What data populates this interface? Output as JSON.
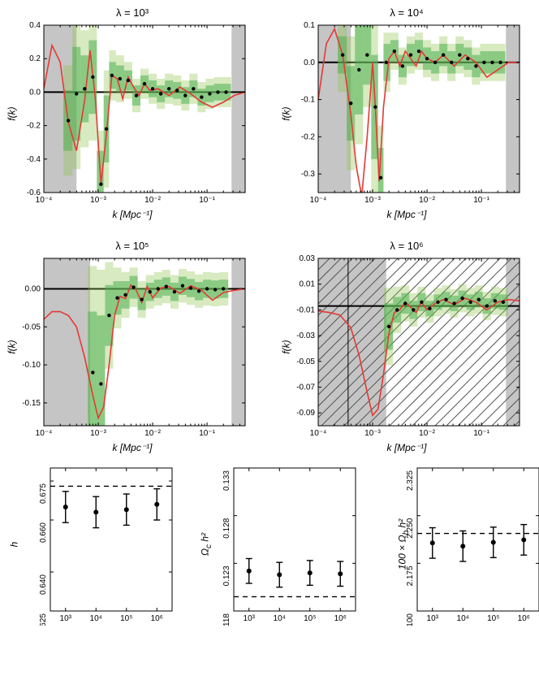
{
  "shared": {
    "xlabel_fk": "k [Mpc⁻¹]",
    "ylabel_fk": "f(k)",
    "xticks_log": [
      "10⁻⁴",
      "10⁻³",
      "10⁻²",
      "10⁻¹"
    ],
    "bottom_xticks": [
      "10³",
      "10⁴",
      "10⁵",
      "10⁶"
    ],
    "colors": {
      "red": "#e53935",
      "green_inner": "#4caf50",
      "green_outer": "#8bc34a",
      "gray": "#9e9e9e",
      "black": "#000000",
      "background": "#ffffff"
    },
    "font": {
      "family": "Helvetica Neue",
      "title_size": 13,
      "label_size": 12,
      "tick_size": 10
    }
  },
  "panels_fk": [
    {
      "title": "λ = 10³",
      "ylim": [
        -0.6,
        0.4
      ],
      "yticks": [
        -0.6,
        -0.4,
        -0.2,
        0.0,
        0.2,
        0.4
      ],
      "gray_ranges_x": [
        [
          -4,
          -3.4
        ],
        [
          -0.55,
          -0.3
        ]
      ],
      "red_curve": [
        [
          -4,
          0.02
        ],
        [
          -3.85,
          0.28
        ],
        [
          -3.7,
          0.18
        ],
        [
          -3.55,
          -0.18
        ],
        [
          -3.4,
          -0.35
        ],
        [
          -3.25,
          -0.05
        ],
        [
          -3.15,
          0.25
        ],
        [
          -3.05,
          -0.05
        ],
        [
          -2.95,
          -0.55
        ],
        [
          -2.85,
          -0.25
        ],
        [
          -2.75,
          0.1
        ],
        [
          -2.65,
          0.08
        ],
        [
          -2.55,
          -0.04
        ],
        [
          -2.45,
          0.09
        ],
        [
          -2.35,
          0.03
        ],
        [
          -2.25,
          -0.02
        ],
        [
          -2.15,
          0.05
        ],
        [
          -2.05,
          0.01
        ],
        [
          -1.9,
          0.02
        ],
        [
          -1.7,
          -0.02
        ],
        [
          -1.5,
          0.03
        ],
        [
          -1.3,
          -0.01
        ],
        [
          -1.1,
          -0.06
        ],
        [
          -0.9,
          -0.09
        ],
        [
          -0.7,
          -0.06
        ],
        [
          -0.5,
          -0.02
        ],
        [
          -0.3,
          0.0
        ]
      ],
      "points": [
        {
          "x": -3.55,
          "y": -0.17,
          "ei": 0.18,
          "eo": 0.33
        },
        {
          "x": -3.4,
          "y": -0.01,
          "ei": 0.28,
          "eo": 0.45
        },
        {
          "x": -3.25,
          "y": 0.02,
          "ei": 0.2,
          "eo": 0.35
        },
        {
          "x": -3.1,
          "y": 0.09,
          "ei": 0.22,
          "eo": 0.38
        },
        {
          "x": -2.95,
          "y": -0.55,
          "ei": 0.2,
          "eo": 0.32
        },
        {
          "x": -2.85,
          "y": -0.22,
          "ei": 0.2,
          "eo": 0.35
        },
        {
          "x": -2.75,
          "y": 0.1,
          "ei": 0.08,
          "eo": 0.15
        },
        {
          "x": -2.6,
          "y": 0.08,
          "ei": 0.08,
          "eo": 0.14
        },
        {
          "x": -2.45,
          "y": 0.07,
          "ei": 0.06,
          "eo": 0.11
        },
        {
          "x": -2.3,
          "y": -0.02,
          "ei": 0.06,
          "eo": 0.1
        },
        {
          "x": -2.15,
          "y": 0.05,
          "ei": 0.05,
          "eo": 0.09
        },
        {
          "x": -2.0,
          "y": 0.02,
          "ei": 0.05,
          "eo": 0.09
        },
        {
          "x": -1.85,
          "y": -0.01,
          "ei": 0.05,
          "eo": 0.09
        },
        {
          "x": -1.7,
          "y": 0.02,
          "ei": 0.05,
          "eo": 0.09
        },
        {
          "x": -1.55,
          "y": 0.01,
          "ei": 0.05,
          "eo": 0.09
        },
        {
          "x": -1.4,
          "y": -0.02,
          "ei": 0.05,
          "eo": 0.09
        },
        {
          "x": -1.25,
          "y": 0.02,
          "ei": 0.05,
          "eo": 0.09
        },
        {
          "x": -1.1,
          "y": -0.03,
          "ei": 0.05,
          "eo": 0.09
        },
        {
          "x": -0.95,
          "y": -0.01,
          "ei": 0.05,
          "eo": 0.09
        },
        {
          "x": -0.8,
          "y": 0.0,
          "ei": 0.05,
          "eo": 0.09
        },
        {
          "x": -0.65,
          "y": 0.0,
          "ei": 0.05,
          "eo": 0.09
        }
      ]
    },
    {
      "title": "λ = 10⁴",
      "ylim": [
        -0.35,
        0.1
      ],
      "yticks": [
        -0.3,
        -0.2,
        -0.1,
        0.0,
        0.1
      ],
      "gray_ranges_x": [
        [
          -4,
          -3.4
        ],
        [
          -0.55,
          -0.3
        ]
      ],
      "red_curve": [
        [
          -4,
          -0.1
        ],
        [
          -3.85,
          0.05
        ],
        [
          -3.7,
          0.09
        ],
        [
          -3.55,
          0.02
        ],
        [
          -3.4,
          -0.14
        ],
        [
          -3.3,
          -0.28
        ],
        [
          -3.2,
          -0.36
        ],
        [
          -3.1,
          -0.2
        ],
        [
          -3.0,
          0.0
        ],
        [
          -2.95,
          -0.12
        ],
        [
          -2.88,
          -0.32
        ],
        [
          -2.8,
          -0.12
        ],
        [
          -2.7,
          0.01
        ],
        [
          -2.6,
          0.03
        ],
        [
          -2.5,
          -0.01
        ],
        [
          -2.4,
          0.03
        ],
        [
          -2.3,
          0.01
        ],
        [
          -2.2,
          -0.01
        ],
        [
          -2.1,
          0.03
        ],
        [
          -2.0,
          0.01
        ],
        [
          -1.85,
          0.0
        ],
        [
          -1.7,
          0.02
        ],
        [
          -1.5,
          -0.01
        ],
        [
          -1.3,
          0.02
        ],
        [
          -1.1,
          0.0
        ],
        [
          -0.9,
          -0.04
        ],
        [
          -0.7,
          -0.02
        ],
        [
          -0.5,
          0.0
        ],
        [
          -0.3,
          0.0
        ]
      ],
      "points": [
        {
          "x": -3.55,
          "y": 0.02,
          "ei": 0.05,
          "eo": 0.1
        },
        {
          "x": -3.4,
          "y": -0.11,
          "ei": 0.1,
          "eo": 0.18
        },
        {
          "x": -3.25,
          "y": -0.02,
          "ei": 0.12,
          "eo": 0.2
        },
        {
          "x": -3.1,
          "y": 0.02,
          "ei": 0.08,
          "eo": 0.14
        },
        {
          "x": -2.95,
          "y": -0.12,
          "ei": 0.14,
          "eo": 0.24
        },
        {
          "x": -2.85,
          "y": -0.31,
          "ei": 0.08,
          "eo": 0.14
        },
        {
          "x": -2.75,
          "y": 0.0,
          "ei": 0.05,
          "eo": 0.08
        },
        {
          "x": -2.6,
          "y": 0.03,
          "ei": 0.03,
          "eo": 0.05
        },
        {
          "x": -2.45,
          "y": -0.01,
          "ei": 0.03,
          "eo": 0.05
        },
        {
          "x": -2.3,
          "y": 0.02,
          "ei": 0.03,
          "eo": 0.05
        },
        {
          "x": -2.15,
          "y": 0.03,
          "ei": 0.03,
          "eo": 0.05
        },
        {
          "x": -2.0,
          "y": 0.01,
          "ei": 0.03,
          "eo": 0.05
        },
        {
          "x": -1.85,
          "y": 0.0,
          "ei": 0.03,
          "eo": 0.05
        },
        {
          "x": -1.7,
          "y": 0.02,
          "ei": 0.03,
          "eo": 0.05
        },
        {
          "x": -1.55,
          "y": 0.0,
          "ei": 0.03,
          "eo": 0.05
        },
        {
          "x": -1.4,
          "y": 0.02,
          "ei": 0.03,
          "eo": 0.05
        },
        {
          "x": -1.25,
          "y": 0.01,
          "ei": 0.03,
          "eo": 0.05
        },
        {
          "x": -1.1,
          "y": -0.01,
          "ei": 0.03,
          "eo": 0.05
        },
        {
          "x": -0.95,
          "y": 0.0,
          "ei": 0.03,
          "eo": 0.05
        },
        {
          "x": -0.8,
          "y": 0.0,
          "ei": 0.03,
          "eo": 0.05
        },
        {
          "x": -0.65,
          "y": 0.0,
          "ei": 0.03,
          "eo": 0.05
        }
      ]
    },
    {
      "title": "λ = 10⁵",
      "ylim": [
        -0.18,
        0.04
      ],
      "yticks": [
        -0.15,
        -0.1,
        -0.05,
        0.0
      ],
      "gray_ranges_x": [
        [
          -4,
          -3.15
        ],
        [
          -0.55,
          -0.3
        ]
      ],
      "red_curve": [
        [
          -4,
          -0.04
        ],
        [
          -3.85,
          -0.03
        ],
        [
          -3.7,
          -0.03
        ],
        [
          -3.55,
          -0.035
        ],
        [
          -3.4,
          -0.05
        ],
        [
          -3.25,
          -0.09
        ],
        [
          -3.1,
          -0.14
        ],
        [
          -3.0,
          -0.17
        ],
        [
          -2.9,
          -0.155
        ],
        [
          -2.8,
          -0.1
        ],
        [
          -2.7,
          -0.035
        ],
        [
          -2.6,
          -0.01
        ],
        [
          -2.5,
          -0.013
        ],
        [
          -2.4,
          0.005
        ],
        [
          -2.3,
          -0.002
        ],
        [
          -2.2,
          -0.018
        ],
        [
          -2.1,
          0.003
        ],
        [
          -2.0,
          -0.012
        ],
        [
          -1.85,
          0.001
        ],
        [
          -1.7,
          0.003
        ],
        [
          -1.5,
          -0.006
        ],
        [
          -1.3,
          0.004
        ],
        [
          -1.1,
          -0.002
        ],
        [
          -0.9,
          -0.015
        ],
        [
          -0.7,
          -0.005
        ],
        [
          -0.5,
          -0.002
        ],
        [
          -0.3,
          0.0
        ]
      ],
      "points": [
        {
          "x": -3.1,
          "y": -0.11,
          "ei": 0.08,
          "eo": 0.14
        },
        {
          "x": -2.95,
          "y": -0.125,
          "ei": 0.09,
          "eo": 0.15
        },
        {
          "x": -2.8,
          "y": -0.035,
          "ei": 0.04,
          "eo": 0.07
        },
        {
          "x": -2.65,
          "y": -0.012,
          "ei": 0.022,
          "eo": 0.04
        },
        {
          "x": -2.5,
          "y": -0.008,
          "ei": 0.018,
          "eo": 0.03
        },
        {
          "x": -2.35,
          "y": 0.002,
          "ei": 0.015,
          "eo": 0.026
        },
        {
          "x": -2.2,
          "y": -0.014,
          "ei": 0.014,
          "eo": 0.024
        },
        {
          "x": -2.05,
          "y": -0.004,
          "ei": 0.012,
          "eo": 0.022
        },
        {
          "x": -1.9,
          "y": 0.0,
          "ei": 0.012,
          "eo": 0.022
        },
        {
          "x": -1.75,
          "y": 0.003,
          "ei": 0.012,
          "eo": 0.022
        },
        {
          "x": -1.6,
          "y": -0.004,
          "ei": 0.012,
          "eo": 0.022
        },
        {
          "x": -1.45,
          "y": 0.004,
          "ei": 0.012,
          "eo": 0.022
        },
        {
          "x": -1.3,
          "y": 0.001,
          "ei": 0.012,
          "eo": 0.022
        },
        {
          "x": -1.15,
          "y": -0.003,
          "ei": 0.012,
          "eo": 0.022
        },
        {
          "x": -1.0,
          "y": 0.0,
          "ei": 0.012,
          "eo": 0.022
        },
        {
          "x": -0.85,
          "y": -0.001,
          "ei": 0.012,
          "eo": 0.022
        },
        {
          "x": -0.7,
          "y": 0.0,
          "ei": 0.012,
          "eo": 0.022
        }
      ]
    },
    {
      "title": "λ = 10⁶",
      "ylim": [
        -0.1,
        0.03
      ],
      "yticks": [
        -0.09,
        -0.07,
        -0.05,
        -0.03,
        -0.01,
        0.01,
        0.03
      ],
      "gray_ranges_x": [
        [
          -4,
          -2.75
        ],
        [
          -0.55,
          -0.3
        ]
      ],
      "hatched_x": [
        -4,
        -3.45
      ],
      "red_curve": [
        [
          -4,
          -0.011
        ],
        [
          -3.8,
          -0.012
        ],
        [
          -3.6,
          -0.014
        ],
        [
          -3.4,
          -0.024
        ],
        [
          -3.25,
          -0.045
        ],
        [
          -3.1,
          -0.074
        ],
        [
          -3.0,
          -0.092
        ],
        [
          -2.9,
          -0.087
        ],
        [
          -2.8,
          -0.06
        ],
        [
          -2.7,
          -0.028
        ],
        [
          -2.6,
          -0.012
        ],
        [
          -2.5,
          -0.01
        ],
        [
          -2.4,
          -0.004
        ],
        [
          -2.3,
          -0.008
        ],
        [
          -2.2,
          -0.012
        ],
        [
          -2.1,
          -0.004
        ],
        [
          -2.0,
          -0.01
        ],
        [
          -1.85,
          -0.005
        ],
        [
          -1.7,
          -0.002
        ],
        [
          -1.5,
          -0.006
        ],
        [
          -1.3,
          -0.001
        ],
        [
          -1.1,
          -0.004
        ],
        [
          -0.9,
          -0.01
        ],
        [
          -0.7,
          -0.004
        ],
        [
          -0.5,
          -0.002
        ],
        [
          -0.3,
          -0.003
        ]
      ],
      "points": [
        {
          "x": -2.7,
          "y": -0.023,
          "ei": 0.018,
          "eo": 0.03
        },
        {
          "x": -2.55,
          "y": -0.01,
          "ei": 0.01,
          "eo": 0.018
        },
        {
          "x": -2.4,
          "y": -0.005,
          "ei": 0.008,
          "eo": 0.014
        },
        {
          "x": -2.25,
          "y": -0.01,
          "ei": 0.007,
          "eo": 0.013
        },
        {
          "x": -2.1,
          "y": -0.004,
          "ei": 0.007,
          "eo": 0.012
        },
        {
          "x": -1.95,
          "y": -0.009,
          "ei": 0.006,
          "eo": 0.011
        },
        {
          "x": -1.8,
          "y": -0.004,
          "ei": 0.006,
          "eo": 0.011
        },
        {
          "x": -1.65,
          "y": -0.002,
          "ei": 0.006,
          "eo": 0.011
        },
        {
          "x": -1.5,
          "y": -0.005,
          "ei": 0.006,
          "eo": 0.011
        },
        {
          "x": -1.35,
          "y": -0.001,
          "ei": 0.006,
          "eo": 0.011
        },
        {
          "x": -1.2,
          "y": -0.004,
          "ei": 0.006,
          "eo": 0.011
        },
        {
          "x": -1.05,
          "y": -0.002,
          "ei": 0.006,
          "eo": 0.011
        },
        {
          "x": -0.9,
          "y": -0.007,
          "ei": 0.006,
          "eo": 0.011
        },
        {
          "x": -0.75,
          "y": -0.003,
          "ei": 0.006,
          "eo": 0.011
        },
        {
          "x": -0.6,
          "y": -0.004,
          "ei": 0.006,
          "eo": 0.011
        }
      ],
      "extra_vline_x": -3.45,
      "zero_y": -0.007
    }
  ],
  "bottom_panels": [
    {
      "ylabel": "h",
      "ylim": [
        0.625,
        0.68
      ],
      "yticks": [
        0.625,
        0.64,
        0.66,
        0.675
      ],
      "ytick_labels": [
        "0.625",
        "0.640",
        "0.660",
        "0.675"
      ],
      "dashed_y": 0.673,
      "points": [
        {
          "x": 0,
          "y": 0.665,
          "e": 0.006
        },
        {
          "x": 1,
          "y": 0.663,
          "e": 0.006
        },
        {
          "x": 2,
          "y": 0.664,
          "e": 0.006
        },
        {
          "x": 3,
          "y": 0.666,
          "e": 0.006
        }
      ]
    },
    {
      "ylabel": "Ω_c h²",
      "ylim": [
        0.118,
        0.133
      ],
      "yticks": [
        0.118,
        0.123,
        0.128,
        0.133
      ],
      "ytick_labels": [
        "0.118",
        "0.123",
        "0.128",
        "0.133"
      ],
      "dashed_y": 0.1195,
      "points": [
        {
          "x": 0,
          "y": 0.1222,
          "e": 0.0013
        },
        {
          "x": 1,
          "y": 0.1218,
          "e": 0.0013
        },
        {
          "x": 2,
          "y": 0.122,
          "e": 0.0013
        },
        {
          "x": 3,
          "y": 0.1219,
          "e": 0.0013
        }
      ]
    },
    {
      "ylabel": "100 × Ω_b h²",
      "ylim": [
        2.1,
        2.325
      ],
      "yticks": [
        2.1,
        2.175,
        2.25,
        2.325
      ],
      "ytick_labels": [
        "2.100",
        "2.175",
        "2.250",
        "2.325"
      ],
      "dashed_y": 2.222,
      "points": [
        {
          "x": 0,
          "y": 2.207,
          "e": 0.024
        },
        {
          "x": 1,
          "y": 2.202,
          "e": 0.024
        },
        {
          "x": 2,
          "y": 2.208,
          "e": 0.024
        },
        {
          "x": 3,
          "y": 2.212,
          "e": 0.024
        }
      ]
    }
  ]
}
